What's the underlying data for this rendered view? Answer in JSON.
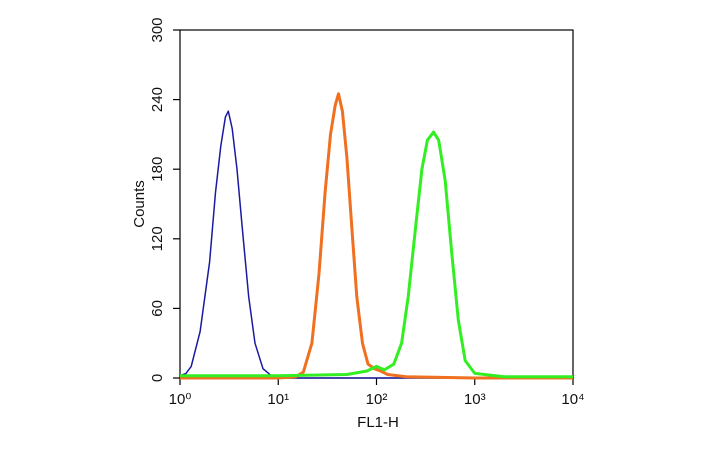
{
  "chart_data": {
    "type": "line",
    "xlabel": "FL1-H",
    "ylabel": "Counts",
    "xscale": "log",
    "xlim": [
      1,
      10000
    ],
    "ylim": [
      0,
      300
    ],
    "xticks": [
      {
        "value": 1,
        "label": "10⁰"
      },
      {
        "value": 10,
        "label": "10¹"
      },
      {
        "value": 100,
        "label": "10²"
      },
      {
        "value": 1000,
        "label": "10³"
      },
      {
        "value": 10000,
        "label": "10⁴"
      }
    ],
    "yticks": [
      0,
      60,
      120,
      180,
      240,
      300
    ],
    "series": [
      {
        "color": "#1a1aa0",
        "width": 1.5,
        "x": [
          1,
          1.15,
          1.3,
          1.6,
          2,
          2.3,
          2.6,
          2.9,
          3.1,
          3.4,
          3.8,
          4.3,
          5,
          5.8,
          7,
          8.5,
          10,
          100,
          10000
        ],
        "values": [
          2,
          4,
          10,
          40,
          100,
          160,
          200,
          225,
          230,
          215,
          180,
          130,
          70,
          30,
          8,
          2,
          0,
          0,
          0
        ]
      },
      {
        "color": "#f07020",
        "width": 3,
        "x": [
          1,
          10,
          15,
          18,
          22,
          26,
          30,
          34,
          38,
          41,
          45,
          50,
          56,
          63,
          72,
          82,
          95,
          110,
          130,
          200,
          1000,
          10000
        ],
        "values": [
          0,
          0,
          1,
          5,
          30,
          90,
          160,
          210,
          235,
          245,
          230,
          190,
          130,
          70,
          30,
          12,
          8,
          6,
          3,
          1,
          0,
          0
        ]
      },
      {
        "color": "#33ee22",
        "width": 3,
        "x": [
          1,
          10,
          50,
          80,
          100,
          120,
          150,
          180,
          210,
          250,
          290,
          330,
          380,
          430,
          500,
          580,
          680,
          800,
          1000,
          2000,
          10000
        ],
        "values": [
          2,
          2,
          3,
          6,
          10,
          7,
          12,
          30,
          70,
          130,
          180,
          205,
          212,
          205,
          170,
          110,
          50,
          15,
          4,
          1,
          1
        ]
      }
    ]
  }
}
